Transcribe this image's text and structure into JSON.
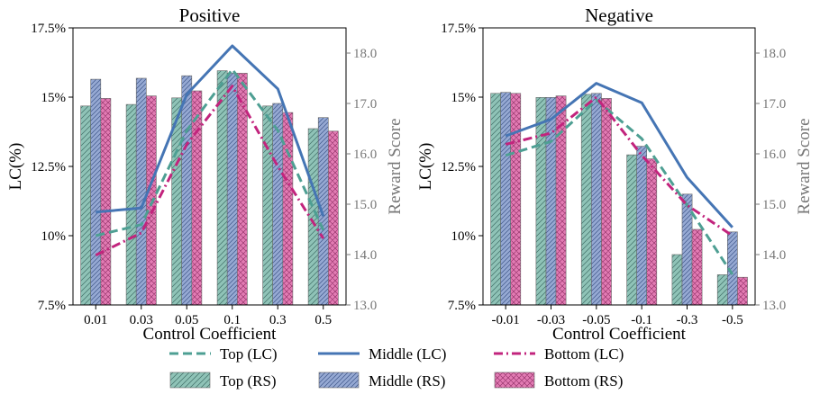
{
  "chart_data": [
    {
      "type": "bar",
      "title": "Positive",
      "xlabel": "Control Coefficient",
      "ylabel": "LC(%)",
      "y2label": "Reward Score",
      "categories": [
        "0.01",
        "0.03",
        "0.05",
        "0.1",
        "0.3",
        "0.5"
      ],
      "ylim": [
        7.5,
        17.5
      ],
      "yticks": [
        "7.5%",
        "10%",
        "12.5%",
        "15%",
        "17.5%"
      ],
      "y2lim": [
        13.0,
        18.5
      ],
      "y2ticks": [
        "13.0",
        "14.0",
        "15.0",
        "16.0",
        "17.0",
        "18.0"
      ],
      "bar_series": [
        {
          "name": "Top (RS)",
          "values": [
            16.95,
            16.98,
            17.11,
            17.65,
            16.95,
            16.5
          ]
        },
        {
          "name": "Middle (RS)",
          "values": [
            17.48,
            17.5,
            17.55,
            17.6,
            17.0,
            16.72
          ]
        },
        {
          "name": "Bottom (RS)",
          "values": [
            17.1,
            17.15,
            17.25,
            17.6,
            16.82,
            16.45
          ]
        }
      ],
      "line_series": [
        {
          "name": "Top (LC)",
          "values": [
            10.0,
            10.4,
            13.8,
            16.0,
            13.8,
            10.2
          ]
        },
        {
          "name": "Middle (LC)",
          "values": [
            10.85,
            11.0,
            15.1,
            16.85,
            15.3,
            10.7
          ]
        },
        {
          "name": "Bottom (LC)",
          "values": [
            9.3,
            10.1,
            13.3,
            15.4,
            12.5,
            9.9
          ]
        }
      ]
    },
    {
      "type": "bar",
      "title": "Negative",
      "xlabel": "Control Coefficient",
      "ylabel": "LC(%)",
      "y2label": "Reward Score",
      "categories": [
        "-0.01",
        "-0.03",
        "-0.05",
        "-0.1",
        "-0.3",
        "-0.5"
      ],
      "ylim": [
        7.5,
        17.5
      ],
      "yticks": [
        "7.5%",
        "10%",
        "12.5%",
        "15%",
        "17.5%"
      ],
      "y2lim": [
        13.0,
        18.5
      ],
      "y2ticks": [
        "13.0",
        "14.0",
        "15.0",
        "16.0",
        "17.0",
        "18.0"
      ],
      "bar_series": [
        {
          "name": "Top (RS)",
          "values": [
            17.2,
            17.12,
            17.18,
            15.98,
            14.0,
            13.6
          ]
        },
        {
          "name": "Middle (RS)",
          "values": [
            17.22,
            17.12,
            17.2,
            16.15,
            15.2,
            14.45
          ]
        },
        {
          "name": "Bottom (RS)",
          "values": [
            17.2,
            17.15,
            17.1,
            15.9,
            14.5,
            13.55
          ]
        }
      ],
      "line_series": [
        {
          "name": "Top (LC)",
          "values": [
            12.9,
            13.4,
            14.9,
            13.5,
            11.1,
            8.6
          ]
        },
        {
          "name": "Middle (LC)",
          "values": [
            13.6,
            14.2,
            15.5,
            14.8,
            12.1,
            10.3
          ]
        },
        {
          "name": "Bottom (LC)",
          "values": [
            13.3,
            13.7,
            15.0,
            12.9,
            11.1,
            10.0
          ]
        }
      ]
    }
  ],
  "legend": [
    {
      "label": "Top (LC)",
      "kind": "line",
      "color": "#4e9f93",
      "dash": "dashed"
    },
    {
      "label": "Middle (LC)",
      "kind": "line",
      "color": "#4575b4",
      "dash": "solid"
    },
    {
      "label": "Bottom (LC)",
      "kind": "line",
      "color": "#c2247d",
      "dash": "dashdot"
    },
    {
      "label": "Top (RS)",
      "kind": "bar",
      "color": "#8fc3b7",
      "hatch": "diagonal"
    },
    {
      "label": "Middle (RS)",
      "kind": "bar",
      "color": "#96a9d3",
      "hatch": "diagonal-dense"
    },
    {
      "label": "Bottom (RS)",
      "kind": "bar",
      "color": "#e27bb3",
      "hatch": "crosshatch"
    }
  ],
  "colors": {
    "top": "#4e9f93",
    "middle": "#4575b4",
    "bottom": "#c2247d",
    "top_bar": "#8fc3b7",
    "middle_bar": "#96a9d3",
    "bottom_bar": "#e27bb3",
    "axis_right": "#777777"
  }
}
